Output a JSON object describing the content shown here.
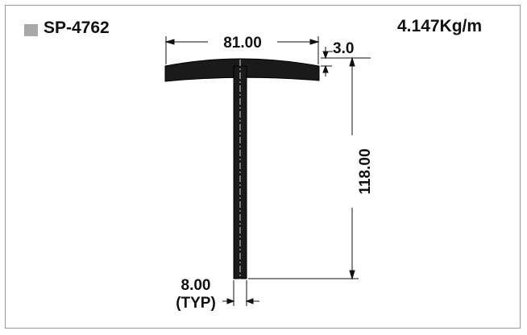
{
  "header": {
    "profile_code": "SP-4762",
    "weight_per_meter": "4.147Kg/m"
  },
  "dimensions": {
    "flange_width": "81.00",
    "flange_thickness": "3.0",
    "height": "118.00",
    "web_thickness": "8.00",
    "web_thickness_note": "(TYP)"
  },
  "colors": {
    "profile": "#1a1a1a",
    "swatch": "#a8a8a8",
    "frame": "#9a9a9a"
  }
}
